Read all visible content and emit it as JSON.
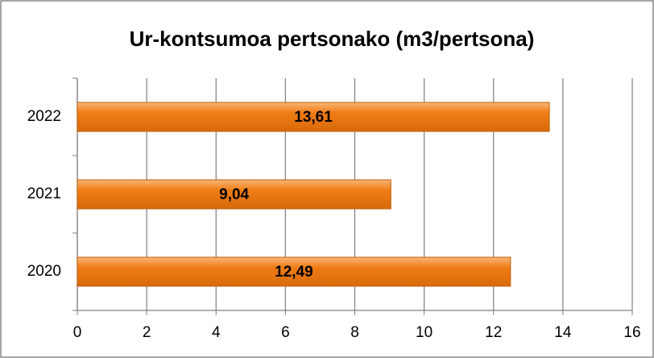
{
  "chart_data": {
    "type": "hbar",
    "title": "Ur-kontsumoa pertsonako (m3/pertsona)",
    "categories": [
      "2020",
      "2021",
      "2022"
    ],
    "values": [
      12.49,
      9.04,
      13.61
    ],
    "value_labels": [
      "12,49",
      "9,04",
      "13,61"
    ],
    "color": "#f07d16",
    "xlim": [
      0,
      16
    ],
    "xticks": [
      0,
      2,
      4,
      6,
      8,
      10,
      12,
      14,
      16
    ],
    "grid": true
  }
}
